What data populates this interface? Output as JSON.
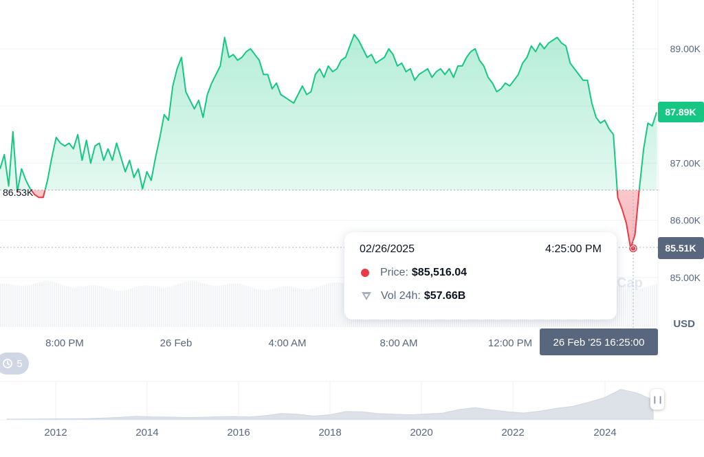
{
  "chart_data": {
    "type": "area",
    "y_axis": {
      "ticks": [
        "89.00K",
        "88.00K",
        "87.00K",
        "86.00K",
        "85.00K"
      ],
      "tick_values": [
        89000,
        88000,
        87000,
        86000,
        85000
      ],
      "unit_label": "USD",
      "ylim": [
        84200,
        89850
      ]
    },
    "x_axis": {
      "ticks": [
        "8:00 PM",
        "26 Feb",
        "4:00 AM",
        "8:00 AM",
        "12:00 PM"
      ]
    },
    "reference": {
      "label": "86.53K",
      "value": 86530
    },
    "current_price": {
      "label": "87.89K",
      "value": 87890
    },
    "crosshair": {
      "price_label": "85.51K",
      "value": 85510,
      "time_label": "26 Feb '25 16:25:00"
    },
    "series": [
      {
        "values": [
          86900,
          87150,
          86600,
          87550,
          86500,
          86900,
          86700,
          86550,
          86450,
          86400,
          86400,
          86700,
          87100,
          87450,
          87350,
          87300,
          87350,
          87250,
          87500,
          87050,
          87400,
          87000,
          87300,
          87350,
          87050,
          87250,
          87050,
          87350,
          87100,
          86850,
          87050,
          86750,
          86900,
          86550,
          86850,
          86700,
          87100,
          87450,
          87850,
          87750,
          88350,
          88650,
          88850,
          88250,
          88100,
          87950,
          88100,
          87800,
          88200,
          88400,
          88550,
          88700,
          89200,
          88850,
          88900,
          88800,
          88850,
          88950,
          89000,
          88900,
          88800,
          88550,
          88550,
          88300,
          88400,
          88200,
          88150,
          88100,
          88050,
          88200,
          88350,
          88200,
          88250,
          88550,
          88650,
          88500,
          88700,
          88600,
          88650,
          88800,
          88850,
          89050,
          89250,
          89150,
          89000,
          88850,
          88900,
          88750,
          88800,
          88850,
          89000,
          88900,
          88700,
          88750,
          88600,
          88650,
          88450,
          88550,
          88600,
          88650,
          88500,
          88600,
          88650,
          88550,
          88650,
          88500,
          88700,
          88700,
          88850,
          88950,
          89000,
          88800,
          88700,
          88500,
          88400,
          88250,
          88300,
          88400,
          88350,
          88450,
          88550,
          88750,
          88850,
          89050,
          88950,
          89100,
          89000,
          89100,
          89150,
          89200,
          89100,
          89050,
          88750,
          88650,
          88550,
          88450,
          88450,
          88050,
          87800,
          87700,
          87750,
          87600,
          87500,
          86400,
          86200,
          85950,
          85510,
          85750,
          86550,
          87250,
          87700,
          87650,
          87890
        ],
        "fill_above_reference": "#16c784",
        "fill_below_reference": "#ea3943"
      }
    ],
    "tooltip": {
      "date": "02/26/2025",
      "time": "4:25:00 PM",
      "price_label": "Price:",
      "price_value": "$85,516.04",
      "vol_label": "Vol 24h:",
      "vol_value": "$57.66B"
    },
    "navigator": {
      "ticks": [
        "2012",
        "2014",
        "2016",
        "2018",
        "2020",
        "2022",
        "2024"
      ],
      "values": [
        0.1,
        0.2,
        0.3,
        0.5,
        0.5,
        0.8,
        1.5,
        2.5,
        3.8,
        3.0,
        2.8,
        2.2,
        2.5,
        3.2,
        3.5,
        3.0,
        4.5,
        7.5,
        6.5,
        4.0,
        5.8,
        10.0,
        9.5,
        7.2,
        6.5,
        5.8,
        6.8,
        8.0,
        12.5,
        15.0,
        12.0,
        9.5,
        8.0,
        10.5,
        14.0,
        16.5,
        22.0,
        28.0,
        38.5,
        34.0,
        25.0
      ]
    },
    "history_count": "5",
    "watermark": "Cap",
    "colors": {
      "up": "#16c784",
      "down": "#ea3943",
      "grid": "#eff2f5",
      "axis_text": "#58667e",
      "badge": "#58667e",
      "volume_bar": "#e6e9ef"
    }
  }
}
